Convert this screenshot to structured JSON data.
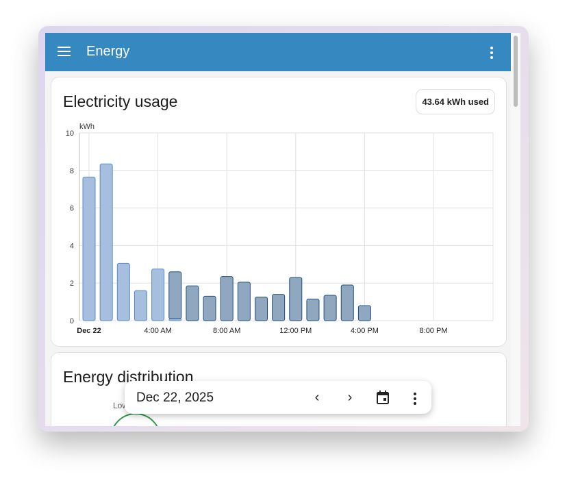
{
  "header": {
    "title": "Energy",
    "menu_icon": "hamburger-icon",
    "more_icon": "dots-vertical-icon"
  },
  "usage_card": {
    "title": "Electricity usage",
    "total_badge": "43.64 kWh used",
    "chart_data": {
      "type": "bar",
      "stacked": true,
      "ylabel": "kWh",
      "ylim": [
        0,
        10
      ],
      "yticks": [
        "0",
        "2",
        "4",
        "6",
        "8",
        "10"
      ],
      "xticks": [
        {
          "hour": 0,
          "label": "Dec 22"
        },
        {
          "hour": 4,
          "label": "4:00 AM"
        },
        {
          "hour": 8,
          "label": "8:00 AM"
        },
        {
          "hour": 12,
          "label": "12:00 PM"
        },
        {
          "hour": 16,
          "label": "4:00 PM"
        },
        {
          "hour": 20,
          "label": "8:00 PM"
        }
      ],
      "grid": true,
      "x_hours": [
        0,
        1,
        2,
        3,
        4,
        5,
        6,
        7,
        8,
        9,
        10,
        11,
        12,
        13,
        14,
        15,
        16
      ],
      "series": [
        {
          "color": "#a6bfde",
          "stroke": "#5a8bc6",
          "values": [
            7.65,
            8.35,
            3.05,
            1.6,
            2.75,
            0.1,
            0,
            0,
            0,
            0,
            0,
            0,
            0,
            0,
            0,
            0,
            0
          ]
        },
        {
          "color": "#8fa8bf",
          "stroke": "#1f4d7e",
          "values": [
            0,
            0,
            0,
            0,
            0,
            2.5,
            1.85,
            1.3,
            2.35,
            2.05,
            1.25,
            1.4,
            2.3,
            1.15,
            1.35,
            1.9,
            0.8
          ]
        }
      ]
    }
  },
  "distribution_card": {
    "title": "Energy distribution",
    "low_label": "Low"
  },
  "date_picker": {
    "date": "Dec 22, 2025",
    "prev_icon": "chevron-left-icon",
    "next_icon": "chevron-right-icon",
    "calendar_icon": "calendar-icon",
    "more_icon": "dots-vertical-icon"
  }
}
